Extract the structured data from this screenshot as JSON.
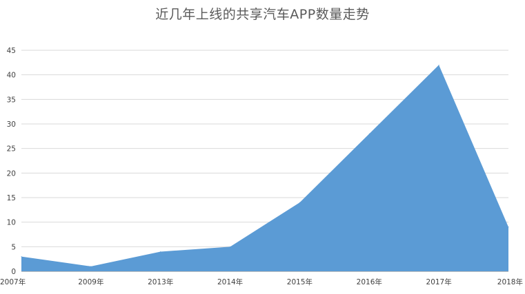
{
  "chart_data": {
    "type": "area",
    "title": "近几年上线的共享汽车APP数量走势",
    "xlabel": "",
    "ylabel": "",
    "categories": [
      "2007年",
      "2009年",
      "2013年",
      "2014年",
      "2015年",
      "2016年",
      "2017年",
      "2018年"
    ],
    "series": [
      {
        "values": [
          3,
          1,
          4,
          5,
          14,
          28,
          42,
          9
        ],
        "color": "#5b9bd5"
      }
    ],
    "ylim": [
      0,
      45
    ],
    "yticks": [
      0,
      5,
      10,
      15,
      20,
      25,
      30,
      35,
      40,
      45
    ],
    "grid": true,
    "legend": "none"
  }
}
